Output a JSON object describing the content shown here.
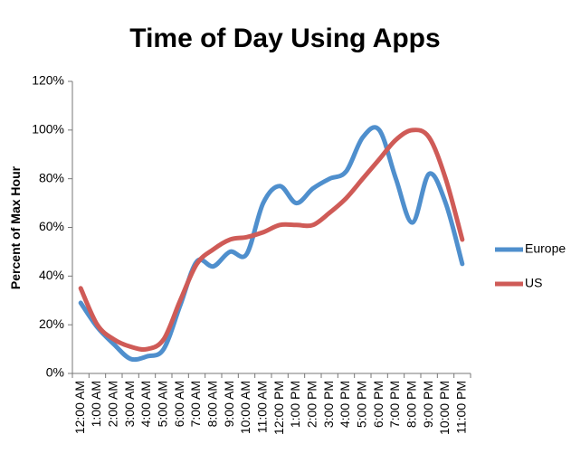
{
  "chart_data": {
    "type": "line",
    "title": "Time of Day Using Apps",
    "y_label": "Percent of Max Hour",
    "categories": [
      "12:00 AM",
      "1:00 AM",
      "2:00 AM",
      "3:00 AM",
      "4:00 AM",
      "5:00 AM",
      "6:00 AM",
      "7:00 AM",
      "8:00 AM",
      "9:00 AM",
      "10:00 AM",
      "11:00 AM",
      "12:00 PM",
      "1:00 PM",
      "2:00 PM",
      "3:00 PM",
      "4:00 PM",
      "5:00 PM",
      "6:00 PM",
      "7:00 PM",
      "8:00 PM",
      "9:00 PM",
      "10:00 PM",
      "11:00 PM"
    ],
    "series": [
      {
        "name": "Europe",
        "color": "#4f8fcd",
        "values": [
          29,
          19,
          12,
          6,
          7,
          10,
          28,
          46,
          44,
          50,
          49,
          70,
          77,
          70,
          76,
          80,
          83,
          97,
          100,
          80,
          62,
          82,
          70,
          45
        ]
      },
      {
        "name": "US",
        "color": "#cf5b57",
        "values": [
          35,
          20,
          14,
          11,
          10,
          14,
          30,
          45,
          51,
          55,
          56,
          58,
          61,
          61,
          61,
          66,
          72,
          80,
          88,
          96,
          100,
          97,
          80,
          55
        ]
      }
    ],
    "ylim": [
      0,
      120
    ],
    "yticks": [
      {
        "value": 0,
        "label": "0%"
      },
      {
        "value": 20,
        "label": "20%"
      },
      {
        "value": 40,
        "label": "40%"
      },
      {
        "value": 60,
        "label": "60%"
      },
      {
        "value": 80,
        "label": "80%"
      },
      {
        "value": 100,
        "label": "100%"
      },
      {
        "value": 120,
        "label": "120%"
      }
    ],
    "smooth": true,
    "legend": "right"
  }
}
